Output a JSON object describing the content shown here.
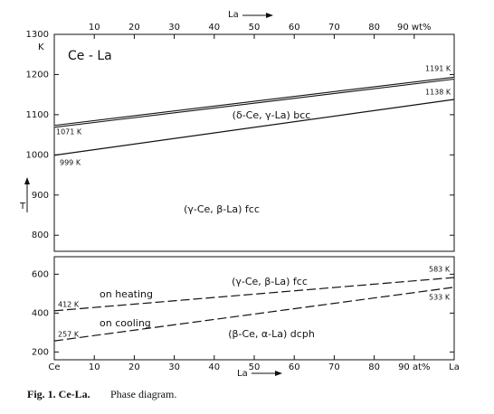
{
  "chart_data": {
    "type": "line",
    "title": "Ce - La",
    "y_unit": "K",
    "ylabel": "T",
    "xlabel_top": "La",
    "xlabel": "La",
    "xlim": [
      0,
      100
    ],
    "xticks_top": [
      10,
      20,
      30,
      40,
      50,
      60,
      70,
      80,
      {
        "value": 90,
        "label": "90 wt%"
      }
    ],
    "xticks": [
      {
        "value": 0,
        "label": "Ce"
      },
      10,
      20,
      30,
      40,
      50,
      60,
      70,
      80,
      {
        "value": 90,
        "label": "90 at%"
      },
      {
        "value": 100,
        "label": "La"
      }
    ],
    "x": [
      0,
      100
    ],
    "panels": [
      {
        "ylim": [
          760,
          1300
        ],
        "yticks": [
          800,
          900,
          1000,
          1100,
          1200,
          1300
        ],
        "series": [
          {
            "color": "#111111",
            "style": "double",
            "values": [
              1071,
              1191
            ],
            "value_labels": [
              "1071 K",
              "1191 K"
            ]
          },
          {
            "color": "#111111",
            "style": "solid",
            "values": [
              999,
              1138
            ],
            "value_labels": [
              "999 K",
              "1138 K"
            ]
          }
        ],
        "annotations": [
          "(δ-Ce, γ-La) bcc",
          "(γ-Ce, β-La) fcc"
        ]
      },
      {
        "ylim": [
          160,
          690
        ],
        "yticks": [
          200,
          400,
          600
        ],
        "series": [
          {
            "color": "#111111",
            "style": "dashed",
            "values": [
              412,
              583
            ],
            "value_labels": [
              "412 K",
              "583 K"
            ]
          },
          {
            "color": "#111111",
            "style": "dashed",
            "values": [
              257,
              533
            ],
            "value_labels": [
              "257 K",
              "533 K"
            ]
          }
        ],
        "annotations": [
          "(γ-Ce, β-La) fcc",
          "on heating",
          "on cooling",
          "(β-Ce, α-La) dcph"
        ]
      }
    ]
  },
  "caption": {
    "label": "Fig. 1. Ce-La.",
    "text": "Phase diagram."
  }
}
